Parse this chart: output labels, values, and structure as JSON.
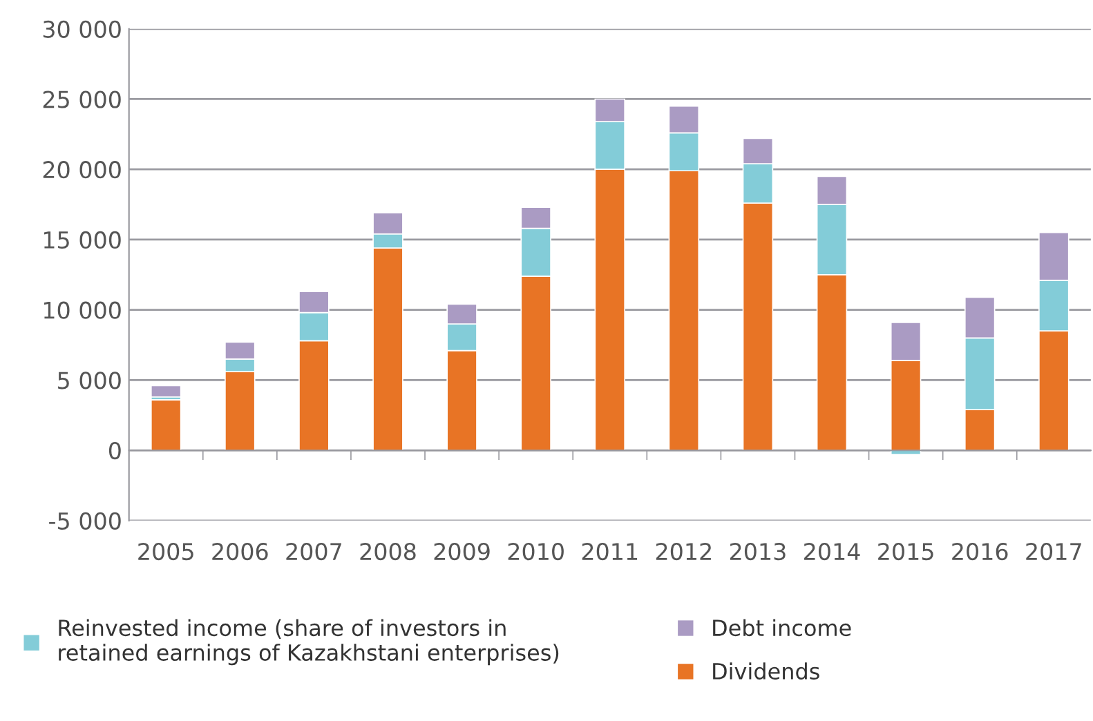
{
  "chart_data": {
    "type": "bar",
    "stacked": true,
    "categories": [
      "2005",
      "2006",
      "2007",
      "2008",
      "2009",
      "2010",
      "2011",
      "2012",
      "2013",
      "2014",
      "2015",
      "2016",
      "2017"
    ],
    "series": [
      {
        "name": "Dividends",
        "color": "#e87425",
        "values": [
          3600,
          5600,
          7800,
          14400,
          7100,
          12400,
          20000,
          19900,
          17600,
          12500,
          6400,
          2900,
          8500
        ]
      },
      {
        "name": "Reinvested income (share of investors in retained earnings of Kazakhstani enterprises)",
        "color": "#83ccd8",
        "values": [
          200,
          900,
          2000,
          1000,
          1900,
          3400,
          3400,
          2700,
          2800,
          5000,
          -300,
          5100,
          3600
        ]
      },
      {
        "name": "Debt income",
        "color": "#aa9bc3",
        "values": [
          800,
          1200,
          1500,
          1500,
          1400,
          1500,
          1600,
          1900,
          1800,
          2000,
          2700,
          2900,
          3400
        ]
      }
    ],
    "ylim": [
      -5000,
      30000
    ],
    "yticks": [
      {
        "value": -5000,
        "label": "-5 000"
      },
      {
        "value": 0,
        "label": "0"
      },
      {
        "value": 5000,
        "label": "5 000"
      },
      {
        "value": 10000,
        "label": "10 000"
      },
      {
        "value": 15000,
        "label": "15 000"
      },
      {
        "value": 20000,
        "label": "20 000"
      },
      {
        "value": 25000,
        "label": "25 000"
      },
      {
        "value": 30000,
        "label": "30 000"
      }
    ],
    "grid": "y",
    "legend": "bottom"
  }
}
